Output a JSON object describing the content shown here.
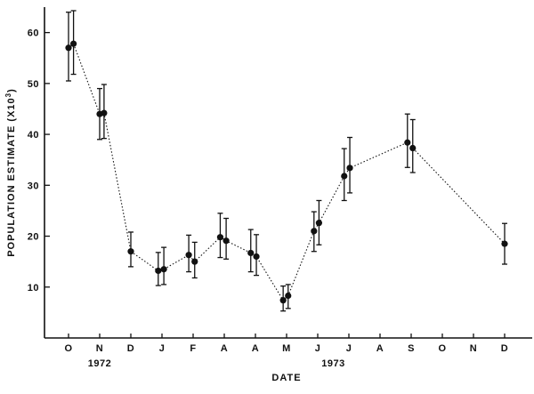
{
  "chart_data": {
    "type": "scatter",
    "title": "",
    "xlabel": "DATE",
    "ylabel": "POPULATION ESTIMATE (X10",
    "ylabel_superscript": "3",
    "ylabel_suffix": ")",
    "ylim": [
      0,
      65
    ],
    "y_ticks": [
      10,
      20,
      30,
      40,
      50,
      60
    ],
    "x_month_labels": [
      "O",
      "N",
      "D",
      "J",
      "F",
      "A",
      "A",
      "M",
      "J",
      "J",
      "A",
      "S",
      "O",
      "N",
      "D"
    ],
    "year_labels": [
      "1972",
      "1973"
    ],
    "grid": false,
    "legend": "none",
    "connected": true,
    "line_style": "dotted",
    "colors": {
      "ink": "#111111",
      "background": "#ffffff"
    },
    "series": [
      {
        "points": [
          {
            "x": 0.0,
            "y": 57.0,
            "low": 50.5,
            "high": 64.0
          },
          {
            "x": 0.16,
            "y": 57.8,
            "low": 51.8,
            "high": 64.3
          },
          {
            "x": 1.0,
            "y": 44.0,
            "low": 39.0,
            "high": 49.0
          },
          {
            "x": 1.14,
            "y": 44.2,
            "low": 39.2,
            "high": 49.8
          },
          {
            "x": 2.0,
            "y": 17.0,
            "low": 14.0,
            "high": 20.8
          },
          {
            "x": 2.88,
            "y": 13.2,
            "low": 10.3,
            "high": 16.8
          },
          {
            "x": 3.06,
            "y": 13.5,
            "low": 10.5,
            "high": 17.8
          },
          {
            "x": 3.86,
            "y": 16.3,
            "low": 13.0,
            "high": 20.2
          },
          {
            "x": 4.05,
            "y": 15.0,
            "low": 11.8,
            "high": 18.8
          },
          {
            "x": 4.87,
            "y": 19.8,
            "low": 15.8,
            "high": 24.5
          },
          {
            "x": 5.06,
            "y": 19.1,
            "low": 15.5,
            "high": 23.5
          },
          {
            "x": 5.85,
            "y": 16.7,
            "low": 13.0,
            "high": 21.3
          },
          {
            "x": 6.03,
            "y": 16.0,
            "low": 12.3,
            "high": 20.3
          },
          {
            "x": 6.89,
            "y": 7.4,
            "low": 5.3,
            "high": 10.2
          },
          {
            "x": 7.05,
            "y": 8.3,
            "low": 5.8,
            "high": 10.5
          },
          {
            "x": 7.88,
            "y": 21.0,
            "low": 17.0,
            "high": 24.8
          },
          {
            "x": 8.04,
            "y": 22.6,
            "low": 18.3,
            "high": 27.0
          },
          {
            "x": 8.85,
            "y": 31.8,
            "low": 27.0,
            "high": 37.2
          },
          {
            "x": 9.03,
            "y": 33.4,
            "low": 28.5,
            "high": 39.4
          },
          {
            "x": 10.88,
            "y": 38.4,
            "low": 33.5,
            "high": 44.0
          },
          {
            "x": 11.05,
            "y": 37.3,
            "low": 32.5,
            "high": 42.9
          },
          {
            "x": 14.0,
            "y": 18.5,
            "low": 14.5,
            "high": 22.5
          }
        ]
      }
    ]
  }
}
